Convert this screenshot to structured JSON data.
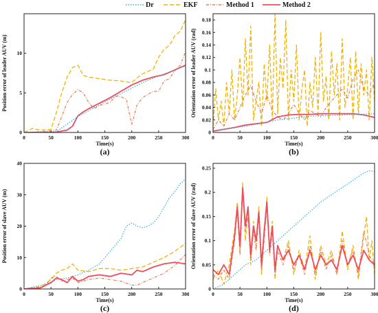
{
  "legend": [
    {
      "name": "Dr",
      "color": "#33aadd",
      "dash": "1.5,2"
    },
    {
      "name": "EKF",
      "color": "#f2b200",
      "dash": "6,3"
    },
    {
      "name": "Method 1",
      "color": "#ea7a4e",
      "dash": "4,2,1,2"
    },
    {
      "name": "Method 2",
      "color": "#ee4c5c",
      "dash": ""
    }
  ],
  "chart_data": [
    {
      "type": "line",
      "panel_label": "(a)",
      "xlabel": "Time(s)",
      "ylabel": "Position error of leader AUV (m)",
      "xlim": [
        0,
        300
      ],
      "ylim": [
        0,
        15
      ],
      "xticks": [
        0,
        50,
        100,
        150,
        200,
        250,
        300
      ],
      "yticks": [
        0,
        5,
        10
      ],
      "series": [
        {
          "name": "EKF",
          "x": [
            0,
            15,
            30,
            50,
            60,
            70,
            80,
            90,
            100,
            110,
            120,
            140,
            160,
            180,
            200,
            210,
            220,
            240,
            250,
            260,
            270,
            280,
            290,
            300
          ],
          "y": [
            0,
            0.5,
            0.3,
            0.4,
            2.5,
            5.0,
            7.0,
            8.2,
            8.5,
            7.2,
            7.0,
            6.8,
            6.6,
            6.5,
            6.3,
            6.9,
            7.4,
            8.0,
            9.5,
            10.5,
            11.0,
            12.2,
            12.8,
            14.2
          ]
        },
        {
          "name": "Method 1",
          "x": [
            0,
            30,
            60,
            70,
            80,
            90,
            100,
            110,
            120,
            130,
            140,
            150,
            160,
            170,
            180,
            190,
            200,
            210,
            220,
            240,
            250,
            260,
            270,
            280,
            290,
            300
          ],
          "y": [
            0,
            0.1,
            0.3,
            2.0,
            3.8,
            4.8,
            5.4,
            5.0,
            3.8,
            3.0,
            3.4,
            3.6,
            3.8,
            4.6,
            4.5,
            4.2,
            1.0,
            3.5,
            4.4,
            5.2,
            5.2,
            6.5,
            6.8,
            7.8,
            8.5,
            10.2
          ]
        },
        {
          "name": "Method 2",
          "x": [
            0,
            60,
            80,
            90,
            100,
            110,
            120,
            140,
            160,
            180,
            200,
            220,
            240,
            260,
            280,
            300
          ],
          "y": [
            0,
            0.05,
            0.3,
            0.8,
            2.1,
            2.6,
            3.0,
            3.7,
            4.4,
            5.2,
            6.0,
            6.6,
            7.0,
            7.3,
            7.9,
            8.5
          ]
        },
        {
          "name": "Dr",
          "x": [
            0,
            60,
            100,
            140,
            180,
            220,
            260,
            300
          ],
          "y": [
            0,
            0.1,
            2.0,
            3.5,
            4.9,
            6.3,
            7.4,
            8.4
          ]
        }
      ]
    },
    {
      "type": "line",
      "panel_label": "(b)",
      "xlabel": "Time(s)",
      "ylabel": "Orientation error of leader AUV (rad)",
      "xlim": [
        0,
        300
      ],
      "ylim": [
        0,
        0.19
      ],
      "xticks": [
        0,
        50,
        100,
        150,
        200,
        250,
        300
      ],
      "yticks": [
        0,
        0.02,
        0.04,
        0.06,
        0.08,
        0.1,
        0.12,
        0.14,
        0.16,
        0.18
      ],
      "series": [
        {
          "name": "EKF",
          "x": [
            0,
            5,
            10,
            15,
            20,
            25,
            30,
            35,
            40,
            45,
            50,
            55,
            60,
            65,
            70,
            75,
            80,
            85,
            90,
            95,
            100,
            105,
            110,
            115,
            120,
            125,
            130,
            135,
            140,
            145,
            150,
            155,
            160,
            165,
            170,
            175,
            180,
            185,
            190,
            195,
            200,
            205,
            210,
            215,
            220,
            225,
            230,
            235,
            240,
            245,
            250,
            255,
            260,
            265,
            270,
            275,
            280,
            285,
            290,
            295,
            300
          ],
          "y": [
            0.01,
            0.07,
            0.02,
            0.05,
            0.01,
            0.08,
            0.03,
            0.1,
            0.02,
            0.06,
            0.12,
            0.04,
            0.15,
            0.06,
            0.17,
            0.02,
            0.05,
            0.08,
            0.01,
            0.11,
            0.05,
            0.14,
            0.02,
            0.19,
            0.03,
            0.12,
            0.07,
            0.18,
            0.02,
            0.1,
            0.05,
            0.14,
            0.02,
            0.07,
            0.1,
            0.01,
            0.08,
            0.04,
            0.12,
            0.03,
            0.16,
            0.05,
            0.09,
            0.02,
            0.13,
            0.06,
            0.11,
            0.02,
            0.15,
            0.04,
            0.07,
            0.12,
            0.02,
            0.13,
            0.03,
            0.11,
            0.06,
            0.1,
            0.02,
            0.12,
            0.05
          ]
        },
        {
          "name": "Method 1",
          "x": [
            0,
            10,
            20,
            30,
            40,
            50,
            60,
            70,
            80,
            90,
            100,
            110,
            120,
            130,
            140,
            150,
            160,
            170,
            180,
            190,
            200,
            210,
            220,
            230,
            240,
            250,
            260,
            270,
            280,
            290,
            300
          ],
          "y": [
            0.005,
            0.02,
            0.01,
            0.03,
            0.02,
            0.04,
            0.06,
            0.075,
            0.05,
            0.03,
            0.06,
            0.035,
            0.025,
            0.02,
            0.03,
            0.045,
            0.03,
            0.02,
            0.035,
            0.03,
            0.025,
            0.04,
            0.05,
            0.06,
            0.07,
            0.055,
            0.085,
            0.1,
            0.07,
            0.06,
            0.08
          ]
        },
        {
          "name": "Method 2",
          "x": [
            0,
            20,
            40,
            60,
            80,
            100,
            120,
            140,
            160,
            180,
            200,
            220,
            240,
            260,
            280,
            290,
            300
          ],
          "y": [
            0.002,
            0.005,
            0.008,
            0.012,
            0.014,
            0.016,
            0.025,
            0.028,
            0.029,
            0.029,
            0.03,
            0.03,
            0.03,
            0.03,
            0.028,
            0.026,
            0.024
          ]
        },
        {
          "name": "Dr",
          "x": [
            0,
            60,
            120,
            180,
            240,
            300
          ],
          "y": [
            0.003,
            0.01,
            0.02,
            0.026,
            0.028,
            0.03
          ]
        }
      ]
    },
    {
      "type": "line",
      "panel_label": "(c)",
      "xlabel": "Time(s)",
      "ylabel": "Position error of slave AUV (m)",
      "xlim": [
        0,
        300
      ],
      "ylim": [
        0,
        40
      ],
      "xticks": [
        0,
        50,
        100,
        150,
        200,
        250,
        300
      ],
      "yticks": [
        0,
        10,
        20,
        30,
        40
      ],
      "series": [
        {
          "name": "Dr",
          "x": [
            0,
            40,
            60,
            80,
            100,
            120,
            140,
            160,
            180,
            190,
            200,
            210,
            220,
            230,
            240,
            250,
            260,
            270,
            280,
            290,
            300
          ],
          "y": [
            0,
            1.5,
            3,
            3.5,
            4.5,
            6,
            8,
            12,
            16,
            20,
            21,
            20,
            19.5,
            20,
            21,
            23,
            26,
            29,
            31,
            33.5,
            35
          ]
        },
        {
          "name": "EKF",
          "x": [
            0,
            30,
            50,
            60,
            70,
            80,
            90,
            100,
            120,
            140,
            160,
            180,
            200,
            220,
            240,
            260,
            280,
            300
          ],
          "y": [
            0,
            0.5,
            3,
            5,
            6,
            6.5,
            8,
            6,
            5.5,
            6.5,
            6.5,
            6,
            6.5,
            7,
            8.5,
            10,
            12,
            14.5
          ]
        },
        {
          "name": "Method 1",
          "x": [
            0,
            40,
            50,
            60,
            70,
            80,
            90,
            100,
            120,
            140,
            160,
            180,
            200,
            210,
            220,
            240,
            260,
            280,
            300
          ],
          "y": [
            0,
            1,
            3.5,
            4,
            2.5,
            3,
            3.5,
            2,
            3,
            3.5,
            3,
            2.5,
            1.2,
            1.2,
            2,
            3.5,
            5,
            7.5,
            11
          ]
        },
        {
          "name": "Method 2",
          "x": [
            0,
            30,
            50,
            60,
            70,
            80,
            90,
            100,
            110,
            120,
            140,
            160,
            180,
            200,
            210,
            220,
            240,
            260,
            280,
            300
          ],
          "y": [
            0,
            0.3,
            2,
            3.5,
            3,
            2,
            4,
            2.5,
            3,
            4,
            4.5,
            4,
            5,
            4.5,
            6,
            5.5,
            7,
            8,
            8.5,
            8
          ]
        }
      ]
    },
    {
      "type": "line",
      "panel_label": "(d)",
      "xlabel": "Time(s)",
      "ylabel": "Orientation error of slave AUV (rad)",
      "xlim": [
        0,
        300
      ],
      "ylim": [
        0,
        0.26
      ],
      "xticks": [
        0,
        50,
        100,
        150,
        200,
        250,
        300
      ],
      "yticks": [
        0,
        0.05,
        0.1,
        0.15,
        0.2,
        0.25
      ],
      "series": [
        {
          "name": "Dr",
          "x": [
            0,
            20,
            40,
            60,
            80,
            100,
            120,
            140,
            160,
            180,
            200,
            220,
            240,
            260,
            280,
            290,
            300
          ],
          "y": [
            0,
            0.01,
            0.03,
            0.05,
            0.06,
            0.08,
            0.1,
            0.12,
            0.14,
            0.16,
            0.18,
            0.195,
            0.21,
            0.225,
            0.24,
            0.245,
            0.243
          ]
        },
        {
          "name": "EKF",
          "x": [
            0,
            10,
            20,
            30,
            40,
            45,
            50,
            55,
            60,
            65,
            70,
            75,
            80,
            85,
            90,
            95,
            100,
            105,
            110,
            115,
            120,
            130,
            140,
            150,
            160,
            170,
            180,
            190,
            200,
            210,
            220,
            230,
            240,
            250,
            260,
            270,
            280,
            285,
            290,
            295,
            300
          ],
          "y": [
            0.02,
            0.04,
            0.01,
            0.05,
            0.12,
            0.18,
            0.08,
            0.22,
            0.1,
            0.16,
            0.05,
            0.14,
            0.09,
            0.17,
            0.03,
            0.12,
            0.19,
            0.08,
            0.14,
            0.02,
            0.09,
            0.06,
            0.1,
            0.03,
            0.08,
            0.04,
            0.11,
            0.02,
            0.09,
            0.05,
            0.08,
            0.03,
            0.12,
            0.04,
            0.09,
            0.02,
            0.11,
            0.15,
            0.06,
            0.1,
            0.03
          ]
        },
        {
          "name": "Method 1",
          "x": [
            0,
            10,
            20,
            30,
            40,
            45,
            50,
            55,
            60,
            65,
            70,
            75,
            80,
            85,
            90,
            95,
            100,
            105,
            110,
            115,
            120,
            130,
            140,
            150,
            160,
            170,
            180,
            190,
            200,
            210,
            220,
            230,
            240,
            250,
            260,
            270,
            280,
            290,
            300
          ],
          "y": [
            0.03,
            0.02,
            0.04,
            0.02,
            0.1,
            0.16,
            0.07,
            0.2,
            0.12,
            0.15,
            0.06,
            0.12,
            0.08,
            0.15,
            0.04,
            0.1,
            0.17,
            0.07,
            0.12,
            0.03,
            0.08,
            0.05,
            0.09,
            0.04,
            0.07,
            0.03,
            0.09,
            0.03,
            0.08,
            0.04,
            0.07,
            0.03,
            0.1,
            0.05,
            0.08,
            0.03,
            0.12,
            0.07,
            0.05
          ]
        },
        {
          "name": "Method 2",
          "x": [
            0,
            10,
            20,
            30,
            40,
            45,
            50,
            55,
            60,
            65,
            70,
            75,
            80,
            85,
            90,
            95,
            100,
            105,
            110,
            115,
            120,
            130,
            140,
            150,
            160,
            170,
            180,
            190,
            200,
            210,
            220,
            230,
            240,
            250,
            260,
            270,
            280,
            290,
            300
          ],
          "y": [
            0.04,
            0.03,
            0.05,
            0.03,
            0.11,
            0.17,
            0.09,
            0.21,
            0.13,
            0.17,
            0.07,
            0.13,
            0.1,
            0.16,
            0.05,
            0.12,
            0.18,
            0.08,
            0.13,
            0.04,
            0.09,
            0.06,
            0.08,
            0.05,
            0.07,
            0.04,
            0.08,
            0.04,
            0.07,
            0.05,
            0.06,
            0.04,
            0.09,
            0.05,
            0.07,
            0.04,
            0.08,
            0.06,
            0.05
          ]
        }
      ]
    }
  ]
}
